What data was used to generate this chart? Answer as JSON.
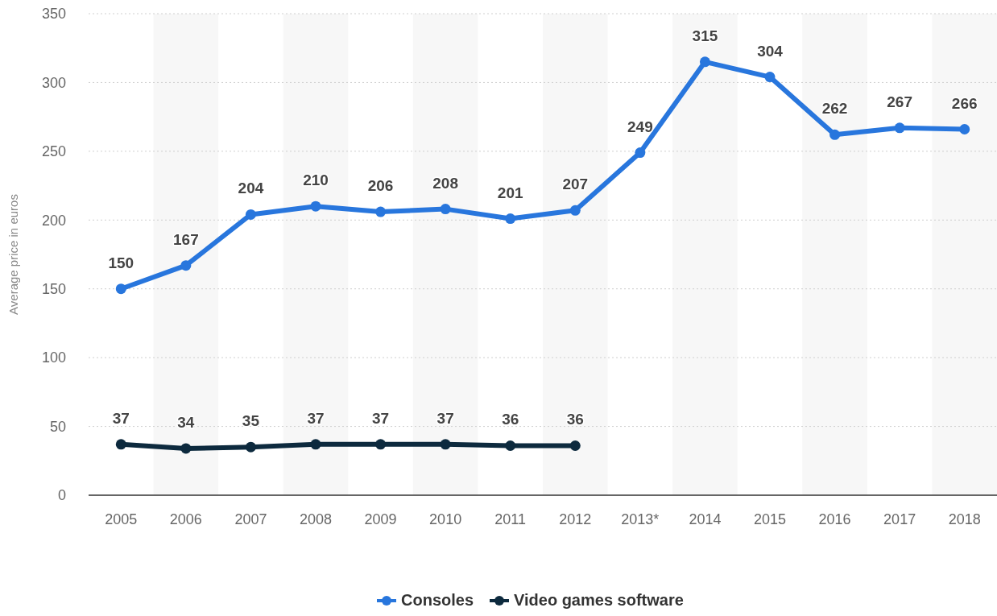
{
  "chart_data": {
    "type": "line",
    "ylabel": "Average price in euros",
    "categories": [
      "2005",
      "2006",
      "2007",
      "2008",
      "2009",
      "2010",
      "2011",
      "2012",
      "2013*",
      "2014",
      "2015",
      "2016",
      "2017",
      "2018"
    ],
    "series": [
      {
        "name": "Consoles",
        "color": "#2876dd",
        "values": [
          150,
          167,
          204,
          210,
          206,
          208,
          201,
          207,
          249,
          315,
          304,
          262,
          267,
          266
        ]
      },
      {
        "name": "Video games software",
        "color": "#0d2a3e",
        "values": [
          37,
          34,
          35,
          37,
          37,
          37,
          36,
          36,
          null,
          null,
          null,
          null,
          null,
          null
        ]
      }
    ],
    "ylim": [
      0,
      350
    ],
    "yticks": [
      0,
      50,
      100,
      150,
      200,
      250,
      300,
      350
    ],
    "grid": "y",
    "legend": "bottom",
    "marker": "circle",
    "line_style": "solid",
    "data_labels": true
  }
}
